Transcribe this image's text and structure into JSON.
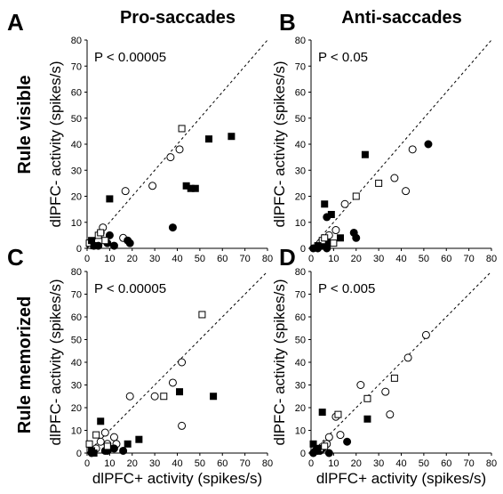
{
  "figure": {
    "col_titles": [
      "Pro-saccades",
      "Anti-saccades"
    ],
    "row_titles": [
      "Rule visible",
      "Rule memorized"
    ],
    "ylabel": "dlPFC- activity (spikes/s)",
    "xlabel": "dlPFC+ activity (spikes/s)"
  },
  "chart_data": [
    {
      "panel": "A",
      "type": "scatter",
      "pvalue": "P < 0.00005",
      "xlim": [
        0,
        80
      ],
      "ylim": [
        0,
        80
      ],
      "xticks": [
        "0",
        "10",
        "20",
        "30",
        "40",
        "50",
        "60",
        "70",
        "80"
      ],
      "yticks": [
        "0",
        "10",
        "20",
        "30",
        "40",
        "50",
        "60",
        "70",
        "80"
      ],
      "identity_line": true,
      "series": [
        {
          "marker": "open-circle",
          "points": [
            [
              3,
              1
            ],
            [
              6,
              6
            ],
            [
              7,
              8
            ],
            [
              16,
              4
            ],
            [
              17,
              22
            ],
            [
              29,
              24
            ],
            [
              37,
              35
            ],
            [
              41,
              38
            ]
          ]
        },
        {
          "marker": "filled-circle",
          "points": [
            [
              5,
              1
            ],
            [
              9,
              2
            ],
            [
              10,
              5
            ],
            [
              12,
              1
            ],
            [
              18,
              3
            ],
            [
              19,
              2
            ],
            [
              38,
              8
            ]
          ]
        },
        {
          "marker": "open-square",
          "points": [
            [
              1,
              2
            ],
            [
              5,
              5
            ],
            [
              6,
              6
            ],
            [
              8,
              3
            ],
            [
              42,
              46
            ]
          ]
        },
        {
          "marker": "filled-square",
          "points": [
            [
              2,
              3
            ],
            [
              3,
              1
            ],
            [
              10,
              19
            ],
            [
              44,
              24
            ],
            [
              46,
              23
            ],
            [
              48,
              23
            ],
            [
              54,
              42
            ],
            [
              64,
              43
            ]
          ]
        }
      ]
    },
    {
      "panel": "B",
      "type": "scatter",
      "pvalue": "P < 0.05",
      "xlim": [
        0,
        80
      ],
      "ylim": [
        0,
        80
      ],
      "xticks": [
        "0",
        "10",
        "20",
        "30",
        "40",
        "50",
        "60",
        "70",
        "80"
      ],
      "yticks": [
        "0",
        "10",
        "20",
        "30",
        "40",
        "50",
        "60",
        "70",
        "80"
      ],
      "identity_line": true,
      "series": [
        {
          "marker": "open-circle",
          "points": [
            [
              4,
              2
            ],
            [
              7,
              4
            ],
            [
              8,
              5
            ],
            [
              11,
              7
            ],
            [
              15,
              17
            ],
            [
              37,
              27
            ],
            [
              42,
              22
            ],
            [
              45,
              38
            ]
          ]
        },
        {
          "marker": "filled-circle",
          "points": [
            [
              1,
              0
            ],
            [
              3,
              0
            ],
            [
              5,
              1
            ],
            [
              7,
              0
            ],
            [
              8,
              2
            ],
            [
              7,
              12
            ],
            [
              19,
              6
            ],
            [
              20,
              4
            ],
            [
              52,
              40
            ]
          ]
        },
        {
          "marker": "open-square",
          "points": [
            [
              5,
              3
            ],
            [
              6,
              4
            ],
            [
              10,
              2
            ],
            [
              20,
              20
            ],
            [
              30,
              25
            ]
          ]
        },
        {
          "marker": "filled-square",
          "points": [
            [
              3,
              1
            ],
            [
              6,
              17
            ],
            [
              9,
              13
            ],
            [
              13,
              4
            ],
            [
              24,
              36
            ]
          ]
        }
      ]
    },
    {
      "panel": "C",
      "type": "scatter",
      "pvalue": "P < 0.00005",
      "xlim": [
        0,
        80
      ],
      "ylim": [
        0,
        80
      ],
      "xticks": [
        "0",
        "10",
        "20",
        "30",
        "40",
        "50",
        "60",
        "70",
        "80"
      ],
      "yticks": [
        "0",
        "10",
        "20",
        "30",
        "40",
        "50",
        "60",
        "70",
        "80"
      ],
      "identity_line": true,
      "series": [
        {
          "marker": "open-circle",
          "points": [
            [
              4,
              2
            ],
            [
              6,
              5
            ],
            [
              8,
              9
            ],
            [
              9,
              4
            ],
            [
              12,
              7
            ],
            [
              13,
              4
            ],
            [
              19,
              25
            ],
            [
              30,
              25
            ],
            [
              38,
              31
            ],
            [
              42,
              40
            ],
            [
              42,
              12
            ]
          ]
        },
        {
          "marker": "filled-circle",
          "points": [
            [
              2,
              0
            ],
            [
              8,
              1
            ],
            [
              9,
              1
            ],
            [
              10,
              2
            ],
            [
              12,
              2
            ],
            [
              16,
              1
            ]
          ]
        },
        {
          "marker": "open-square",
          "points": [
            [
              1,
              4
            ],
            [
              4,
              8
            ],
            [
              9,
              3
            ],
            [
              34,
              25
            ],
            [
              51,
              61
            ]
          ]
        },
        {
          "marker": "filled-square",
          "points": [
            [
              2,
              1
            ],
            [
              3,
              0
            ],
            [
              6,
              14
            ],
            [
              18,
              4
            ],
            [
              23,
              6
            ],
            [
              41,
              27
            ],
            [
              56,
              25
            ]
          ]
        }
      ]
    },
    {
      "panel": "D",
      "type": "scatter",
      "pvalue": "P < 0.005",
      "xlim": [
        0,
        80
      ],
      "ylim": [
        0,
        80
      ],
      "xticks": [
        "0",
        "10",
        "20",
        "30",
        "40",
        "50",
        "60",
        "70",
        "80"
      ],
      "yticks": [
        "0",
        "10",
        "20",
        "30",
        "40",
        "50",
        "60",
        "70",
        "80"
      ],
      "identity_line": true,
      "series": [
        {
          "marker": "open-circle",
          "points": [
            [
              3,
              1
            ],
            [
              5,
              2
            ],
            [
              7,
              4
            ],
            [
              8,
              7
            ],
            [
              11,
              16
            ],
            [
              13,
              8
            ],
            [
              22,
              30
            ],
            [
              33,
              27
            ],
            [
              35,
              17
            ],
            [
              43,
              42
            ],
            [
              51,
              52
            ]
          ]
        },
        {
          "marker": "filled-circle",
          "points": [
            [
              1,
              0
            ],
            [
              2,
              1
            ],
            [
              4,
              1
            ],
            [
              5,
              2
            ],
            [
              8,
              0
            ],
            [
              16,
              5
            ]
          ]
        },
        {
          "marker": "open-square",
          "points": [
            [
              4,
              2
            ],
            [
              6,
              3
            ],
            [
              12,
              17
            ],
            [
              25,
              24
            ],
            [
              37,
              33
            ]
          ]
        },
        {
          "marker": "filled-square",
          "points": [
            [
              1,
              4
            ],
            [
              3,
              2
            ],
            [
              5,
              18
            ],
            [
              25,
              15
            ]
          ]
        }
      ]
    }
  ]
}
